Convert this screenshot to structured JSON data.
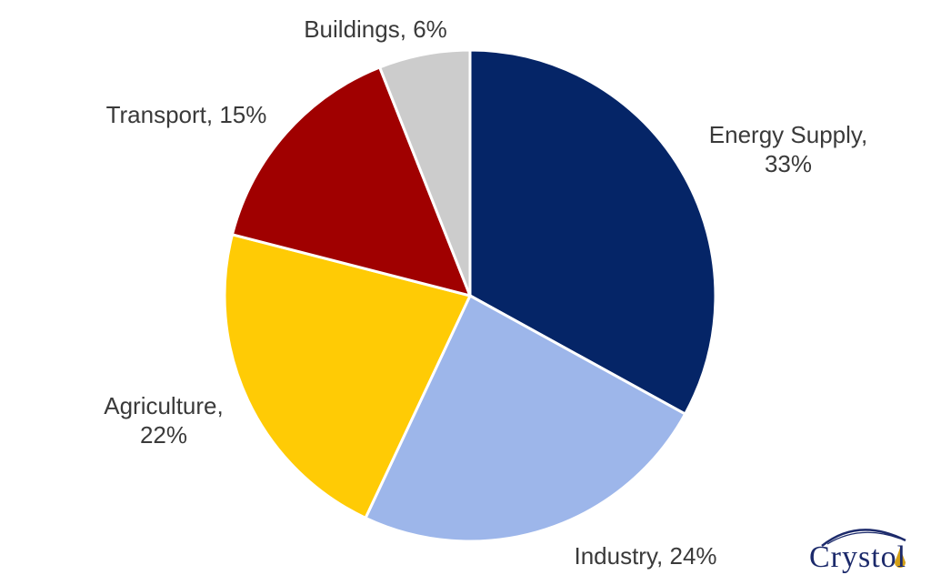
{
  "chart_data": {
    "type": "pie",
    "start_angle_deg": 0,
    "direction": "clockwise",
    "slices": [
      {
        "label": "Energy Supply",
        "value": 33,
        "pct_text": "33%",
        "color": "#052567"
      },
      {
        "label": "Industry",
        "value": 24,
        "pct_text": "24%",
        "color": "#9db6ea"
      },
      {
        "label": "Agriculture",
        "value": 22,
        "pct_text": "22%",
        "color": "#ffcb05"
      },
      {
        "label": "Transport",
        "value": 15,
        "pct_text": "15%",
        "color": "#a00000"
      },
      {
        "label": "Buildings",
        "value": 6,
        "pct_text": "6%",
        "color": "#cccccc"
      }
    ],
    "legend": "none"
  },
  "logo": {
    "text": "Crystol",
    "color": "#1c2a6b",
    "accent": "#d4a017"
  }
}
